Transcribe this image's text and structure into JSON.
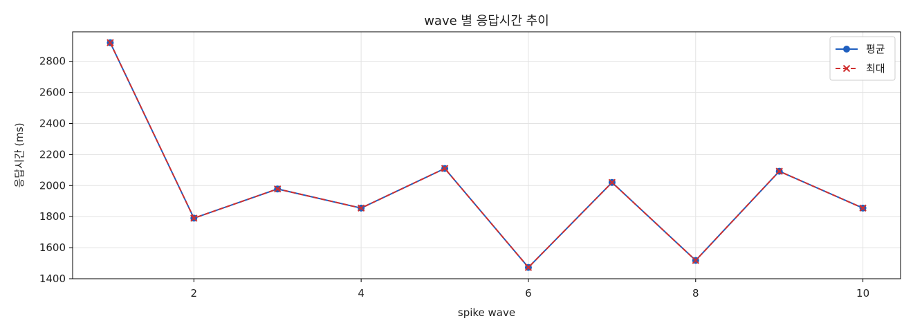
{
  "chart_data": {
    "type": "line",
    "title": "wave 별 응답시간 추이",
    "xlabel": "spike wave",
    "ylabel": "응답시간 (ms)",
    "x": [
      1,
      2,
      3,
      4,
      5,
      6,
      7,
      8,
      9,
      10
    ],
    "xlim": [
      0.55,
      10.45
    ],
    "ylim": [
      1400,
      2990
    ],
    "xticks": [
      2,
      4,
      6,
      8,
      10
    ],
    "yticks": [
      1400,
      1600,
      1800,
      2000,
      2200,
      2400,
      2600,
      2800
    ],
    "grid": true,
    "legend_position": "top-right",
    "series": [
      {
        "name": "평균",
        "values": [
          2920,
          1790,
          1978,
          1855,
          2110,
          1473,
          2020,
          1518,
          2092,
          1855
        ],
        "color": "#1f5fbf",
        "line_style": "solid",
        "marker": "circle"
      },
      {
        "name": "최대",
        "values": [
          2920,
          1790,
          1978,
          1855,
          2110,
          1473,
          2020,
          1518,
          2092,
          1855
        ],
        "color": "#d03030",
        "line_style": "dashed",
        "marker": "x"
      }
    ]
  }
}
